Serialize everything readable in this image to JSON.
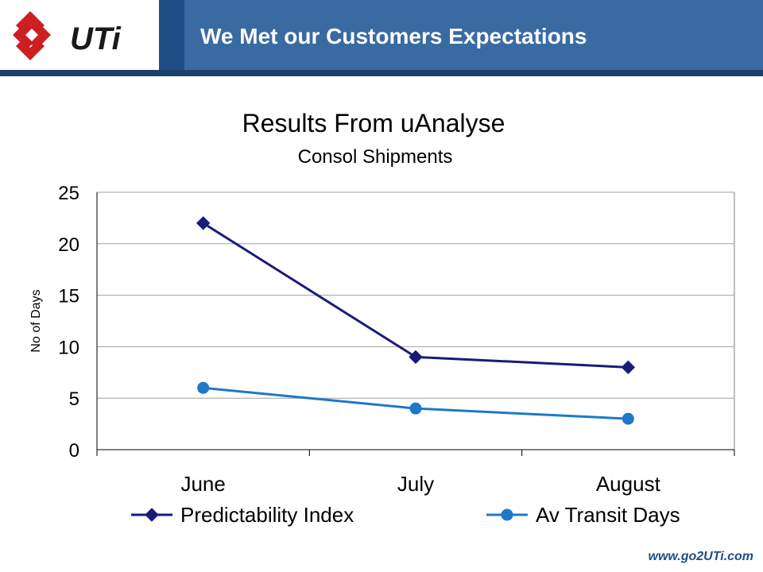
{
  "header": {
    "title": "We Met our Customers Expectations",
    "logo_text": "UTi"
  },
  "footer": {
    "url": "www.go2UTi.com"
  },
  "colors": {
    "header_bg": "#1f4e86",
    "predictability": "#1a1a7a",
    "transit": "#1f78c8"
  },
  "chart_data": {
    "type": "line",
    "title": "Results From uAnalyse",
    "subtitle": "Consol Shipments",
    "xlabel": "",
    "ylabel": "No of Days",
    "categories": [
      "June",
      "July",
      "August"
    ],
    "ylim": [
      0,
      25
    ],
    "yticks": [
      "0",
      "5",
      "10",
      "15",
      "20",
      "25"
    ],
    "grid": true,
    "legend": "bottom",
    "series": [
      {
        "name": "Predictability Index",
        "values": [
          22,
          9,
          8
        ],
        "marker": "diamond",
        "color": "#1a1a7a"
      },
      {
        "name": "Av Transit Days",
        "values": [
          6,
          4,
          3
        ],
        "marker": "circle",
        "color": "#1f78c8"
      }
    ]
  }
}
